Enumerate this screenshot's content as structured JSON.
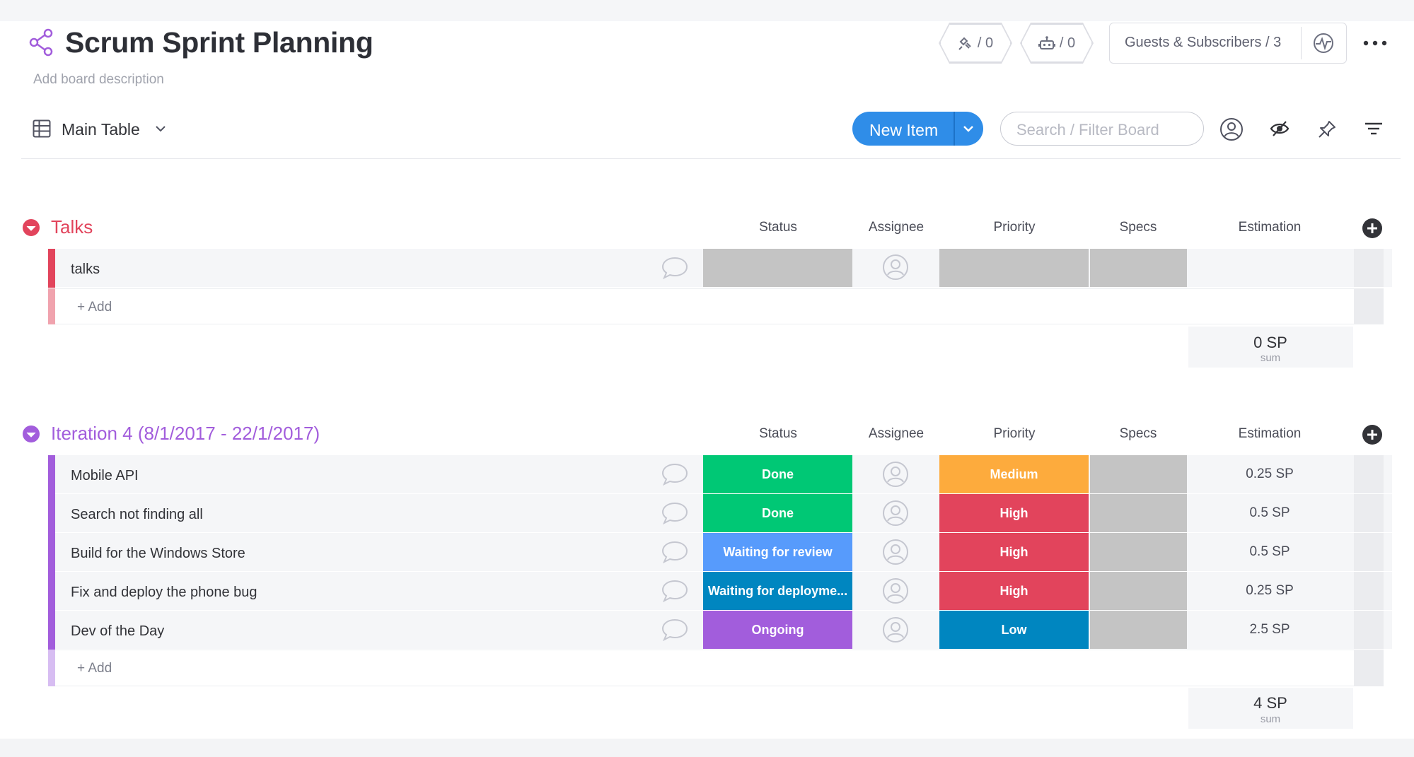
{
  "board": {
    "title": "Scrum Sprint Planning",
    "description_placeholder": "Add board description",
    "integrations_label": "/ 0",
    "automations_label": "/ 0",
    "guests_label": "Guests & Subscribers / 3"
  },
  "toolbar": {
    "view_label": "Main Table",
    "new_item_label": "New Item",
    "search_placeholder": "Search / Filter Board"
  },
  "columns": [
    "Status",
    "Assignee",
    "Priority",
    "Specs",
    "Estimation"
  ],
  "groups": [
    {
      "title": "Talks",
      "color": "#e2445c",
      "add_label": "+ Add",
      "rows": [
        {
          "name": "talks",
          "status": "",
          "status_color": "#c4c4c4",
          "priority": "",
          "priority_color": "#c4c4c4",
          "estimation": ""
        }
      ],
      "sum_value": "0 SP",
      "sum_label": "sum"
    },
    {
      "title": "Iteration 4 (8/1/2017 - 22/1/2017)",
      "color": "#a25ddc",
      "add_label": "+ Add",
      "rows": [
        {
          "name": "Mobile API",
          "status": "Done",
          "status_color": "#00c875",
          "priority": "Medium",
          "priority_color": "#fdab3d",
          "estimation": "0.25 SP"
        },
        {
          "name": "Search not finding all",
          "status": "Done",
          "status_color": "#00c875",
          "priority": "High",
          "priority_color": "#e2445c",
          "estimation": "0.5 SP"
        },
        {
          "name": "Build for the Windows Store",
          "status": "Waiting for review",
          "status_color": "#579bfc",
          "priority": "High",
          "priority_color": "#e2445c",
          "estimation": "0.5 SP"
        },
        {
          "name": "Fix and deploy the phone bug",
          "status": "Waiting for deployme...",
          "status_color": "#0086c0",
          "priority": "High",
          "priority_color": "#e2445c",
          "estimation": "0.25 SP"
        },
        {
          "name": "Dev of the Day",
          "status": "Ongoing",
          "status_color": "#a25ddc",
          "priority": "Low",
          "priority_color": "#0086c0",
          "estimation": "2.5 SP"
        }
      ],
      "sum_value": "4 SP",
      "sum_label": "sum"
    }
  ],
  "colors": {
    "accent": "#2f8de8",
    "done": "#00c875",
    "high": "#e2445c",
    "medium": "#fdab3d",
    "empty": "#c4c4c4"
  }
}
